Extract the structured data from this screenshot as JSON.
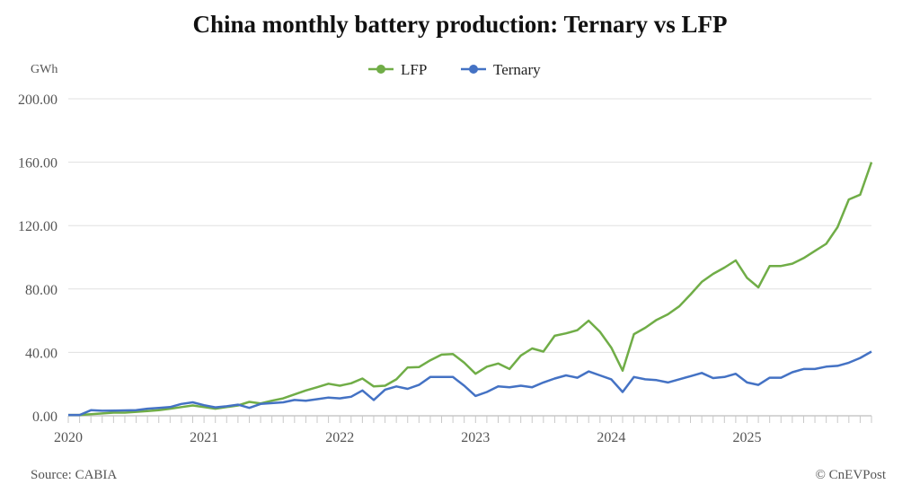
{
  "chart_data": {
    "type": "line",
    "title": "China monthly battery production: Ternary vs LFP",
    "ylabel": "GWh",
    "xlabel": "",
    "ylim": [
      0,
      200
    ],
    "yticks": [
      "0.00",
      "40.00",
      "80.00",
      "120.00",
      "160.00",
      "200.00"
    ],
    "ytick_values": [
      0,
      40,
      80,
      120,
      160,
      200
    ],
    "xticks": [
      "2020",
      "2021",
      "2022",
      "2023",
      "2024",
      "2025"
    ],
    "x_start": "2020-01",
    "x_end": "2025-12",
    "grid": true,
    "legend_position": "top-center",
    "series": [
      {
        "name": "LFP",
        "color": "#70AD47",
        "values": [
          0.5,
          0.5,
          1,
          1.5,
          2,
          2,
          2.5,
          3,
          3.5,
          4.5,
          5.5,
          6.5,
          5.5,
          4.5,
          5.5,
          6.5,
          8.8,
          7.8,
          9.5,
          11,
          13.5,
          16,
          18,
          20.2,
          19,
          20.5,
          23.5,
          18.5,
          19,
          23,
          30.5,
          30.7,
          35,
          38.6,
          39,
          33.5,
          26.5,
          31,
          33,
          29.5,
          38,
          42.5,
          40.5,
          50.5,
          52,
          54,
          60,
          53,
          43,
          28.5,
          51.5,
          55.5,
          60.5,
          64,
          69,
          76.5,
          84.5,
          89.5,
          93.5,
          98,
          87,
          81,
          94.5,
          94.5,
          96,
          99.5,
          104,
          108.5,
          119,
          136.5,
          139.5,
          160
        ]
      },
      {
        "name": "Ternary",
        "color": "#4472C4",
        "values": [
          0.5,
          0.5,
          3.5,
          3.2,
          3.3,
          3.4,
          3.5,
          4.5,
          5,
          5.5,
          7.5,
          8.5,
          6.7,
          5.3,
          6,
          7,
          5,
          7.5,
          8,
          8.5,
          10,
          9.5,
          10.5,
          11.5,
          11,
          12,
          16,
          10,
          16.5,
          18.5,
          17,
          19.5,
          24.5,
          24.5,
          24.5,
          19,
          12.5,
          15,
          18.5,
          18,
          19,
          18,
          21,
          23.5,
          25.5,
          24,
          28,
          25.5,
          23,
          15,
          24.5,
          23,
          22.5,
          21,
          23,
          25,
          27,
          23.8,
          24.5,
          26.5,
          21,
          19.5,
          24,
          24,
          27.5,
          29.5,
          29.5,
          31,
          31.5,
          33.5,
          36.5,
          40.5
        ]
      }
    ]
  },
  "footer": {
    "source": "Source: CABIA",
    "credit": "© CnEVPost"
  }
}
